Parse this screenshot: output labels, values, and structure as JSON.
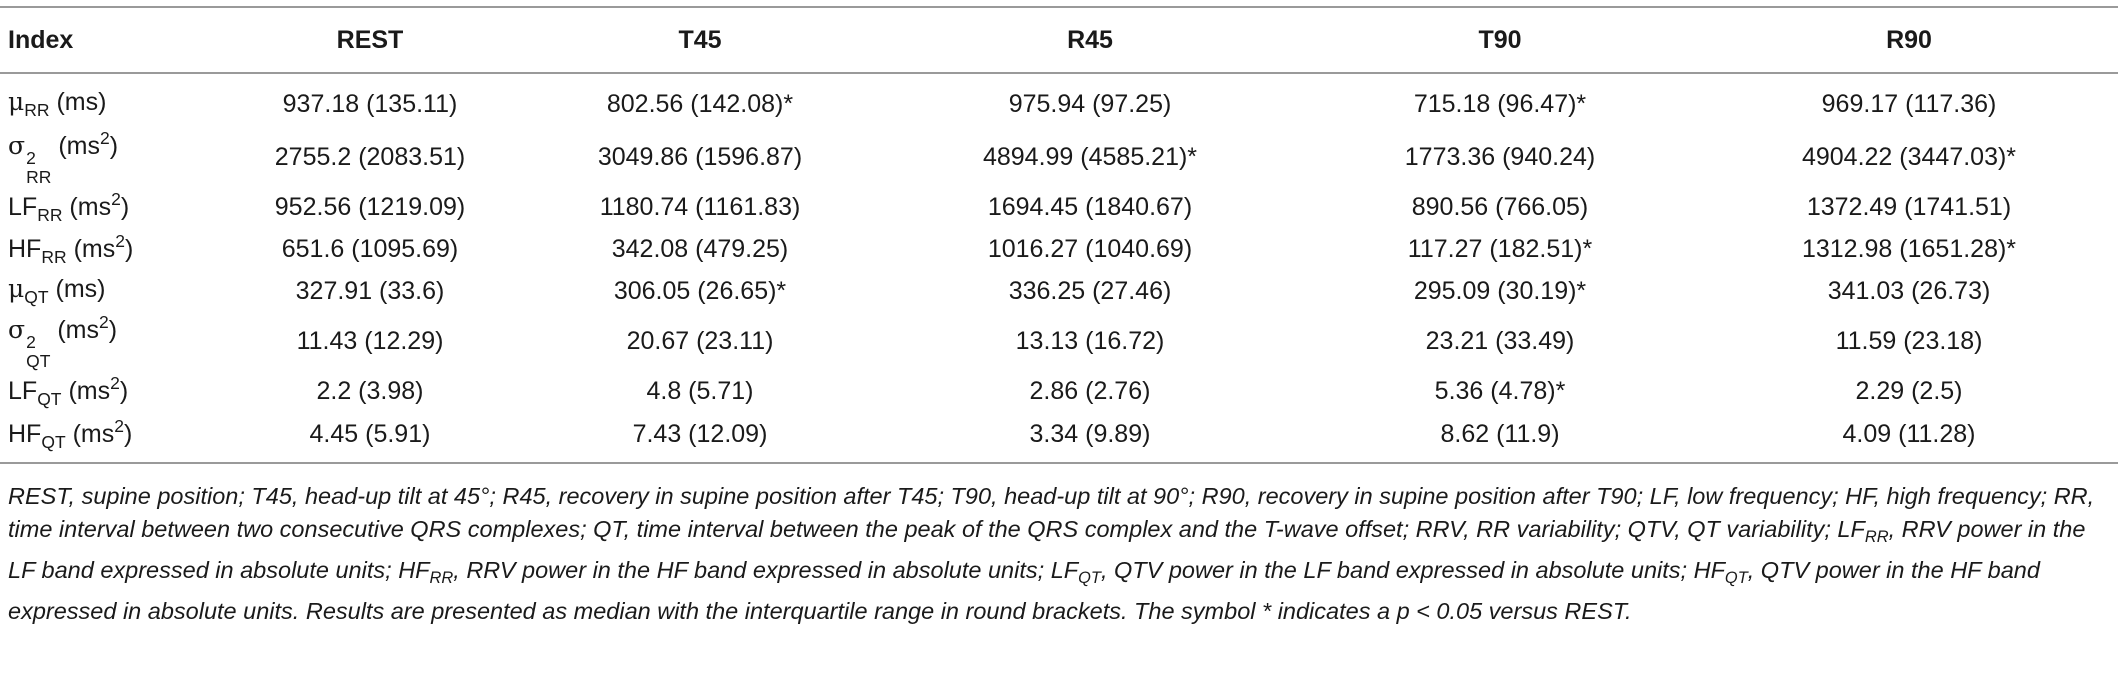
{
  "columns": [
    "Index",
    "REST",
    "T45",
    "R45",
    "T90",
    "R90"
  ],
  "rows": [
    {
      "sym": "μ",
      "sub": "RR",
      "sup": "",
      "unit": "(ms)",
      "unit_sup": "",
      "values": [
        "937.18 (135.11)",
        "802.56 (142.08)*",
        "975.94 (97.25)",
        "715.18 (96.47)*",
        "969.17 (117.36)"
      ]
    },
    {
      "sym": "σ",
      "sub": "RR",
      "sup": "2",
      "unit": "(ms",
      "unit_sup": "2",
      "values": [
        "2755.2 (2083.51)",
        "3049.86 (1596.87)",
        "4894.99 (4585.21)*",
        "1773.36 (940.24)",
        "4904.22 (3447.03)*"
      ]
    },
    {
      "sym": "LF",
      "sub": "RR",
      "sup": "",
      "unit": "(ms",
      "unit_sup": "2",
      "values": [
        "952.56 (1219.09)",
        "1180.74 (1161.83)",
        "1694.45 (1840.67)",
        "890.56 (766.05)",
        "1372.49 (1741.51)"
      ]
    },
    {
      "sym": "HF",
      "sub": "RR",
      "sup": "",
      "unit": "(ms",
      "unit_sup": "2",
      "values": [
        "651.6 (1095.69)",
        "342.08 (479.25)",
        "1016.27 (1040.69)",
        "117.27 (182.51)*",
        "1312.98 (1651.28)*"
      ]
    },
    {
      "sym": "μ",
      "sub": "QT",
      "sup": "",
      "unit": "(ms)",
      "unit_sup": "",
      "values": [
        "327.91 (33.6)",
        "306.05 (26.65)*",
        "336.25 (27.46)",
        "295.09 (30.19)*",
        "341.03 (26.73)"
      ]
    },
    {
      "sym": "σ",
      "sub": "QT",
      "sup": "2",
      "unit": "(ms",
      "unit_sup": "2",
      "values": [
        "11.43 (12.29)",
        "20.67 (23.11)",
        "13.13 (16.72)",
        "23.21 (33.49)",
        "11.59 (23.18)"
      ]
    },
    {
      "sym": "LF",
      "sub": "QT",
      "sup": "",
      "unit": "(ms",
      "unit_sup": "2",
      "values": [
        "2.2 (3.98)",
        "4.8 (5.71)",
        "2.86 (2.76)",
        "5.36 (4.78)*",
        "2.29 (2.5)"
      ]
    },
    {
      "sym": "HF",
      "sub": "QT",
      "sup": "",
      "unit": "(ms",
      "unit_sup": "2",
      "values": [
        "4.45 (5.91)",
        "7.43 (12.09)",
        "3.34 (9.89)",
        "8.62 (11.9)",
        "4.09 (11.28)"
      ]
    }
  ],
  "footnote": {
    "p1": "REST, supine position; T45, head-up tilt at 45°; R45, recovery in supine position after T45; T90, head-up tilt at 90°; R90, recovery in supine position after T90; LF, low frequency; HF, high frequency; RR, time interval between two consecutive QRS complexes; QT, time interval between the peak of the QRS complex and the T-wave offset; RRV, RR variability; QTV, QT variability; ",
    "lf_rr_sym": "LF",
    "lf_rr_sub": "RR",
    "lf_rr_text": ", RRV power in the LF band expressed in absolute units; ",
    "hf_rr_sym": "HF",
    "hf_rr_sub": "RR",
    "hf_rr_text": ", RRV power in the HF band expressed in absolute units; ",
    "lf_qt_sym": "LF",
    "lf_qt_sub": "QT",
    "lf_qt_text": ", QTV power in the LF band expressed in absolute units; ",
    "hf_qt_sym": "HF",
    "hf_qt_sub": "QT",
    "hf_qt_text": ", QTV power in the HF band expressed in absolute units. Results are presented as median with the interquartile range in round brackets. The symbol * indicates a p < 0.05 versus REST."
  }
}
